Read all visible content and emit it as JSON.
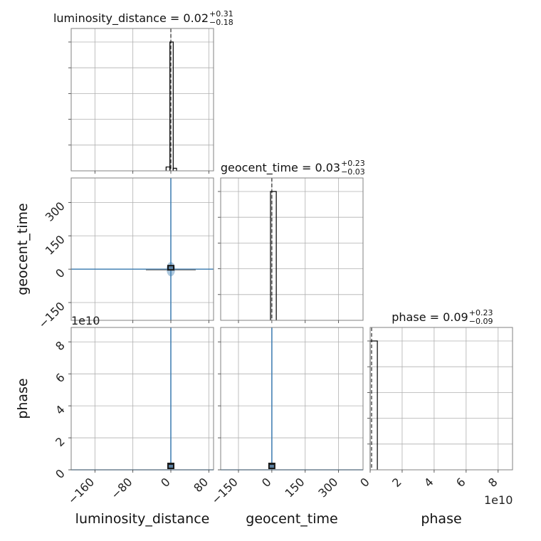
{
  "chart_data": {
    "type": "corner",
    "parameters": [
      "luminosity_distance",
      "geocent_time",
      "phase"
    ],
    "titles": [
      {
        "text": "luminosity_distance = 0.02",
        "upper": "+0.31",
        "lower": "−0.18"
      },
      {
        "text": "geocent_time = 0.03",
        "upper": "+0.23",
        "lower": "−0.03"
      },
      {
        "text": "phase = 0.09",
        "upper": "+0.23",
        "lower": "−0.09"
      }
    ],
    "axes": {
      "luminosity_distance": {
        "range": [
          -210,
          90
        ],
        "ticks": [
          -160,
          -80,
          0,
          80
        ],
        "tick_labels": [
          "−160",
          "−80",
          "0",
          "80"
        ]
      },
      "geocent_time": {
        "range": [
          -230,
          410
        ],
        "ticks": [
          -150,
          0,
          150,
          300
        ],
        "tick_labels": [
          "−150",
          "0",
          "150",
          "300"
        ]
      },
      "phase": {
        "range": [
          0,
          8.9
        ],
        "ticks": [
          0,
          2,
          4,
          6,
          8
        ],
        "tick_labels": [
          "0",
          "2",
          "4",
          "6",
          "8"
        ],
        "scale_label": "1e10"
      }
    },
    "histograms": [
      {
        "param": "luminosity_distance",
        "bins": [
          [
            -10,
            -2,
            0.03
          ],
          [
            -2,
            5,
            1.0
          ],
          [
            5,
            12,
            0.02
          ]
        ],
        "median": 0.02
      },
      {
        "param": "geocent_time",
        "bins": [
          [
            -6,
            20,
            1.0
          ]
        ],
        "median": 0.03
      },
      {
        "param": "phase",
        "bins": [
          [
            0,
            0.45,
            1.0
          ]
        ],
        "median": 0.09
      }
    ],
    "scatter_panels": [
      {
        "x": "luminosity_distance",
        "y": "geocent_time",
        "color": "#4682b4",
        "center": [
          0,
          0
        ]
      },
      {
        "x": "luminosity_distance",
        "y": "phase",
        "color": "#4682b4",
        "center": [
          0,
          0
        ]
      },
      {
        "x": "geocent_time",
        "y": "phase",
        "color": "#4682b4",
        "center": [
          0,
          0
        ]
      }
    ],
    "grid": true,
    "colors": {
      "hist": "#000000",
      "contour": "#4682b4",
      "median_line": "#000000"
    }
  }
}
